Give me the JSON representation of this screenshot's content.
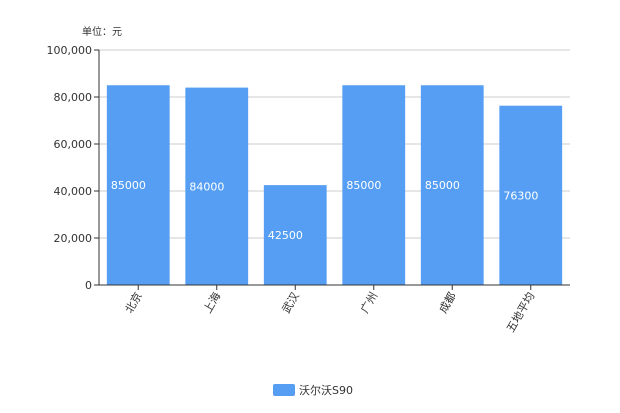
{
  "chart_data": {
    "type": "bar",
    "unit_label": "单位：元",
    "categories": [
      "北京",
      "上海",
      "武汉",
      "广州",
      "成都",
      "五地平均"
    ],
    "series": [
      {
        "name": "沃尔沃S90",
        "values": [
          85000,
          84000,
          42500,
          85000,
          85000,
          76300
        ],
        "color": "#559ef3"
      }
    ],
    "data_labels": [
      "85000",
      "84000",
      "42500",
      "85000",
      "85000",
      "76300"
    ],
    "y_ticks": [
      0,
      20000,
      40000,
      60000,
      80000,
      100000
    ],
    "y_tick_labels": [
      "0",
      "20,000",
      "40,000",
      "60,000",
      "80,000",
      "100,000"
    ],
    "ylim": [
      0,
      100000
    ],
    "grid": true,
    "legend_position": "bottom"
  }
}
